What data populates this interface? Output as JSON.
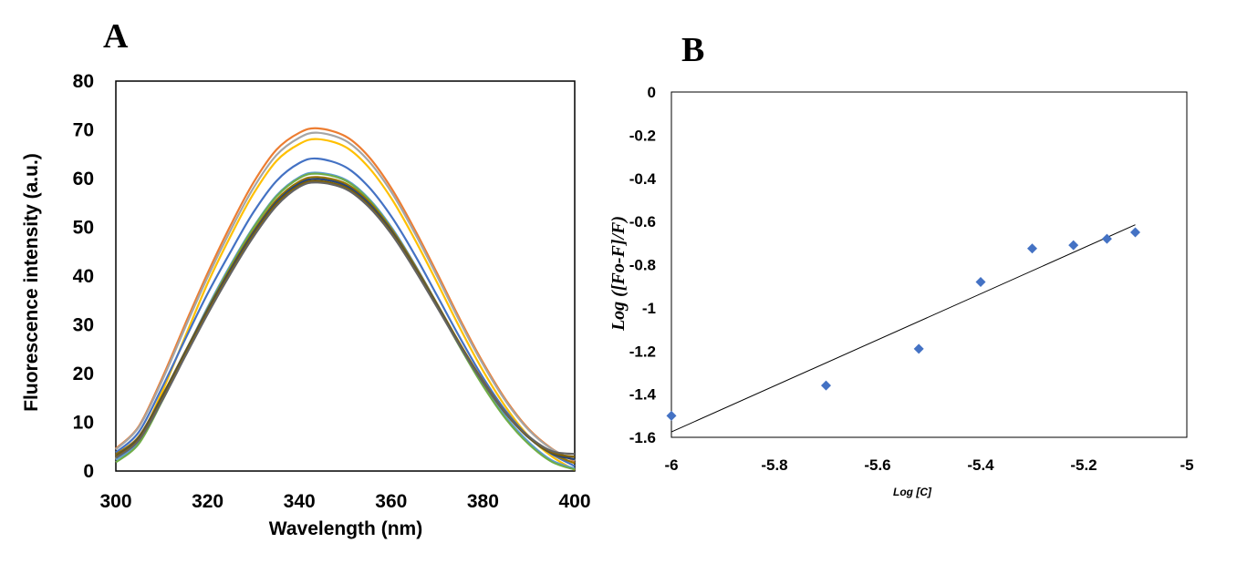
{
  "chart_data": [
    {
      "panel": "A",
      "type": "line",
      "xlabel": "Wavelength (nm)",
      "ylabel": "Fluorescence intensity (a.u.)",
      "xlim": [
        300,
        400
      ],
      "ylim": [
        0,
        80
      ],
      "xticks": [
        "300",
        "320",
        "340",
        "360",
        "380",
        "400"
      ],
      "yticks": [
        "0",
        "10",
        "20",
        "30",
        "40",
        "50",
        "60",
        "70",
        "80"
      ],
      "grid": false,
      "legend": "none",
      "x": [
        300,
        305,
        310,
        315,
        320,
        325,
        330,
        335,
        340,
        344,
        350,
        355,
        360,
        365,
        370,
        375,
        380,
        385,
        390,
        395,
        400
      ],
      "series": [
        {
          "color": "#ed7d31",
          "values": [
            4.6,
            9.2,
            18.9,
            29.9,
            40.6,
            50.4,
            59.2,
            65.9,
            69.4,
            70.3,
            68.7,
            64.6,
            58.1,
            49.8,
            40.6,
            31.1,
            22.3,
            14.6,
            8.6,
            4.6,
            2.0
          ]
        },
        {
          "color": "#a5a5a5",
          "values": [
            4.4,
            9.0,
            18.4,
            29.2,
            39.8,
            49.4,
            58.1,
            64.8,
            68.4,
            69.4,
            67.8,
            63.7,
            57.3,
            49.1,
            40.0,
            30.6,
            21.9,
            14.3,
            8.4,
            4.5,
            2.2
          ]
        },
        {
          "color": "#ffc000",
          "values": [
            2.5,
            6.6,
            16.1,
            27.3,
            38.5,
            48.2,
            56.9,
            63.6,
            67.1,
            68.1,
            66.5,
            62.4,
            56.0,
            47.8,
            38.7,
            29.3,
            20.6,
            13.1,
            7.1,
            3.0,
            0.2
          ]
        },
        {
          "color": "#4472c4",
          "values": [
            3.8,
            8.0,
            17.0,
            26.8,
            36.4,
            45.0,
            53.1,
            59.5,
            63.2,
            64.1,
            62.4,
            58.4,
            52.3,
            44.6,
            36.0,
            27.3,
            19.2,
            12.3,
            7.0,
            3.5,
            1.0
          ]
        },
        {
          "color": "#5b9bd5",
          "values": [
            2.3,
            6.0,
            14.6,
            24.1,
            33.6,
            42.3,
            50.1,
            56.5,
            60.3,
            61.2,
            59.8,
            56.0,
            50.1,
            42.6,
            34.3,
            25.8,
            17.9,
            11.1,
            5.9,
            2.2,
            0.5
          ]
        },
        {
          "color": "#70ad47",
          "values": [
            1.8,
            5.6,
            14.2,
            23.8,
            33.3,
            42.0,
            49.9,
            56.3,
            60.1,
            61.0,
            59.6,
            55.8,
            49.8,
            42.3,
            33.9,
            25.4,
            17.5,
            10.7,
            5.5,
            1.9,
            0.3
          ]
        },
        {
          "color": "#997300",
          "values": [
            3.4,
            7.1,
            15.3,
            24.3,
            33.2,
            41.6,
            49.2,
            55.6,
            59.4,
            60.3,
            59.0,
            55.4,
            49.7,
            42.4,
            34.3,
            26.1,
            18.5,
            11.9,
            6.9,
            3.6,
            1.6
          ]
        },
        {
          "color": "#264478",
          "values": [
            3.1,
            6.8,
            15.0,
            24.1,
            33.0,
            41.3,
            48.9,
            55.2,
            59.0,
            59.9,
            58.6,
            55.0,
            49.3,
            42.0,
            34.0,
            25.8,
            18.3,
            11.8,
            6.8,
            3.6,
            2.4
          ]
        },
        {
          "color": "#7f6000",
          "values": [
            3.0,
            6.6,
            14.7,
            23.8,
            32.7,
            40.9,
            48.5,
            54.8,
            58.6,
            59.5,
            58.2,
            54.6,
            49.0,
            41.8,
            33.8,
            25.7,
            18.2,
            11.8,
            6.9,
            3.8,
            2.9
          ]
        },
        {
          "color": "#636363",
          "values": [
            2.7,
            6.3,
            14.3,
            23.3,
            32.2,
            40.5,
            48.1,
            54.4,
            58.3,
            59.2,
            57.9,
            54.3,
            48.7,
            41.5,
            33.6,
            25.6,
            18.2,
            11.9,
            7.1,
            4.1,
            3.5
          ]
        }
      ]
    },
    {
      "panel": "B",
      "type": "scatter",
      "xlabel": "Log [C]",
      "ylabel": "Log ([Fo-F]/F)",
      "xlim": [
        -6,
        -5
      ],
      "ylim": [
        -1.6,
        0
      ],
      "xticks": [
        "-6",
        "-5.8",
        "-5.6",
        "-5.4",
        "-5.2",
        "-5"
      ],
      "yticks": [
        "0",
        "-0.2",
        "-0.4",
        "-0.6",
        "-0.8",
        "-1",
        "-1.2",
        "-1.4",
        "-1.6"
      ],
      "grid": false,
      "legend": "none",
      "marker_color": "#4472c4",
      "points": [
        {
          "x": -6.0,
          "y": -1.5
        },
        {
          "x": -5.7,
          "y": -1.36
        },
        {
          "x": -5.52,
          "y": -1.19
        },
        {
          "x": -5.4,
          "y": -0.88
        },
        {
          "x": -5.3,
          "y": -0.725
        },
        {
          "x": -5.22,
          "y": -0.71
        },
        {
          "x": -5.155,
          "y": -0.68
        },
        {
          "x": -5.1,
          "y": -0.65
        }
      ],
      "trendline": {
        "x": [
          -6.0,
          -5.1
        ],
        "y": [
          -1.575,
          -0.615
        ]
      }
    }
  ]
}
